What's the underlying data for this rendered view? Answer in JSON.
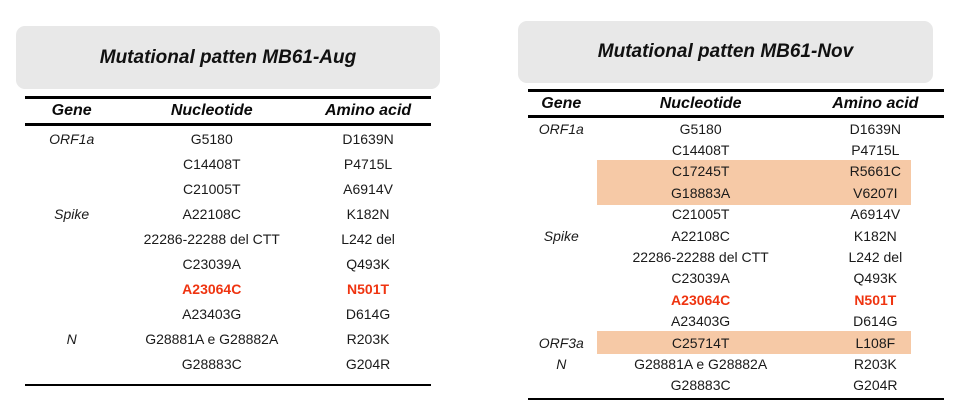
{
  "colors": {
    "banner_bg": "#e8e8e8",
    "highlight_bg": "#f6c9a6",
    "red_text": "#ef3410",
    "rule_color": "#000000",
    "text": "#1a1a1a",
    "page_bg": "#ffffff"
  },
  "tables": [
    {
      "title": "Mutational patten MB61-Aug",
      "columns": [
        "Gene",
        "Nucleotide",
        "Amino acid"
      ],
      "rows": [
        {
          "gene": "ORF1a",
          "nucleotide": "G5180",
          "amino": "D1639N"
        },
        {
          "gene": "",
          "nucleotide": "C14408T",
          "amino": "P4715L"
        },
        {
          "gene": "",
          "nucleotide": "C21005T",
          "amino": "A6914V"
        },
        {
          "gene": "Spike",
          "nucleotide": "A22108C",
          "amino": "K182N"
        },
        {
          "gene": "",
          "nucleotide": "22286-22288 del CTT",
          "amino": "L242 del"
        },
        {
          "gene": "",
          "nucleotide": "C23039A",
          "amino": "Q493K"
        },
        {
          "gene": "",
          "nucleotide": "A23064C",
          "amino": "N501T",
          "emphasis": "red-bold"
        },
        {
          "gene": "",
          "nucleotide": "A23403G",
          "amino": "D614G"
        },
        {
          "gene": "N",
          "nucleotide": "G28881A e G28882A",
          "amino": "R203K"
        },
        {
          "gene": "",
          "nucleotide": "G28883C",
          "amino": "G204R"
        }
      ]
    },
    {
      "title": "Mutational patten MB61-Nov",
      "columns": [
        "Gene",
        "Nucleotide",
        "Amino acid"
      ],
      "rows": [
        {
          "gene": "ORF1a",
          "nucleotide": "G5180",
          "amino": "D1639N"
        },
        {
          "gene": "",
          "nucleotide": "C14408T",
          "amino": "P4715L"
        },
        {
          "gene": "",
          "nucleotide": "C17245T",
          "amino": "R5661C",
          "highlight": true
        },
        {
          "gene": "",
          "nucleotide": "G18883A",
          "amino": "V6207I",
          "highlight": true
        },
        {
          "gene": "",
          "nucleotide": "C21005T",
          "amino": "A6914V"
        },
        {
          "gene": "Spike",
          "nucleotide": "A22108C",
          "amino": "K182N"
        },
        {
          "gene": "",
          "nucleotide": "22286-22288 del CTT",
          "amino": "L242 del"
        },
        {
          "gene": "",
          "nucleotide": "C23039A",
          "amino": "Q493K"
        },
        {
          "gene": "",
          "nucleotide": "A23064C",
          "amino": "N501T",
          "emphasis": "red-bold"
        },
        {
          "gene": "",
          "nucleotide": "A23403G",
          "amino": "D614G"
        },
        {
          "gene": "ORF3a",
          "nucleotide": "C25714T",
          "amino": "L108F",
          "highlight": true
        },
        {
          "gene": "N",
          "nucleotide": "G28881A e G28882A",
          "amino": "R203K"
        },
        {
          "gene": "",
          "nucleotide": "G28883C",
          "amino": "G204R"
        }
      ]
    }
  ]
}
